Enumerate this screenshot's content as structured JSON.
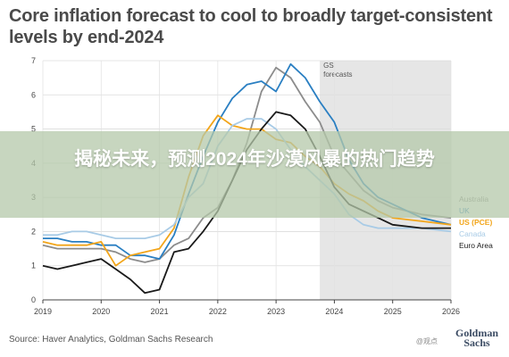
{
  "title": "Core inflation forecast to cool to broadly target-consistent levels by end-2024",
  "source": "Source: Haver Analytics, Goldman Sachs Research",
  "logo_line1": "Goldman",
  "logo_line2": "Sachs",
  "watermark_small": "@观点",
  "banner_text": "揭秘未来，预测2024年沙漠风暴的热门趋势",
  "chart_data": {
    "type": "line",
    "ylim": [
      0,
      7
    ],
    "xlim": [
      2019,
      2026
    ],
    "y_ticks": [
      "0",
      "1",
      "2",
      "3",
      "4",
      "5",
      "6",
      "7"
    ],
    "x_ticks": [
      "2019",
      "2020",
      "2021",
      "2022",
      "2023",
      "2024",
      "2025",
      "2026"
    ],
    "forecast_label": "GS forecasts",
    "forecast_start": 2023.75,
    "grid": true,
    "series": [
      {
        "name": "Australia",
        "color": "#8c8c8c",
        "points": [
          [
            2019,
            1.6
          ],
          [
            2019.25,
            1.5
          ],
          [
            2019.5,
            1.5
          ],
          [
            2019.75,
            1.5
          ],
          [
            2020,
            1.5
          ],
          [
            2020.25,
            1.4
          ],
          [
            2020.5,
            1.2
          ],
          [
            2020.75,
            1.1
          ],
          [
            2021,
            1.2
          ],
          [
            2021.25,
            1.6
          ],
          [
            2021.5,
            1.8
          ],
          [
            2021.75,
            2.4
          ],
          [
            2022,
            2.7
          ],
          [
            2022.25,
            3.5
          ],
          [
            2022.5,
            4.6
          ],
          [
            2022.75,
            6.1
          ],
          [
            2023,
            6.8
          ],
          [
            2023.25,
            6.5
          ],
          [
            2023.5,
            5.8
          ],
          [
            2023.75,
            5.2
          ],
          [
            2024,
            4.2
          ],
          [
            2024.25,
            3.7
          ],
          [
            2024.5,
            3.2
          ],
          [
            2024.75,
            2.9
          ],
          [
            2025,
            2.7
          ],
          [
            2025.5,
            2.5
          ],
          [
            2026,
            2.4
          ]
        ]
      },
      {
        "name": "UK",
        "color": "#2a7fc2",
        "points": [
          [
            2019,
            1.8
          ],
          [
            2019.25,
            1.8
          ],
          [
            2019.5,
            1.7
          ],
          [
            2019.75,
            1.7
          ],
          [
            2020,
            1.6
          ],
          [
            2020.25,
            1.6
          ],
          [
            2020.5,
            1.3
          ],
          [
            2020.75,
            1.3
          ],
          [
            2021,
            1.2
          ],
          [
            2021.25,
            1.9
          ],
          [
            2021.5,
            3.1
          ],
          [
            2021.75,
            4.2
          ],
          [
            2022,
            5.2
          ],
          [
            2022.25,
            5.9
          ],
          [
            2022.5,
            6.3
          ],
          [
            2022.75,
            6.4
          ],
          [
            2023,
            6.1
          ],
          [
            2023.25,
            6.9
          ],
          [
            2023.5,
            6.5
          ],
          [
            2023.75,
            5.8
          ],
          [
            2024,
            5.2
          ],
          [
            2024.25,
            4.1
          ],
          [
            2024.5,
            3.4
          ],
          [
            2024.75,
            3.0
          ],
          [
            2025,
            2.8
          ],
          [
            2025.5,
            2.4
          ],
          [
            2026,
            2.2
          ]
        ]
      },
      {
        "name": "US (PCE)",
        "color": "#f2a51a",
        "points": [
          [
            2019,
            1.7
          ],
          [
            2019.25,
            1.6
          ],
          [
            2019.5,
            1.6
          ],
          [
            2019.75,
            1.6
          ],
          [
            2020,
            1.7
          ],
          [
            2020.25,
            1.0
          ],
          [
            2020.5,
            1.3
          ],
          [
            2020.75,
            1.4
          ],
          [
            2021,
            1.5
          ],
          [
            2021.25,
            2.1
          ],
          [
            2021.5,
            3.6
          ],
          [
            2021.75,
            4.8
          ],
          [
            2022,
            5.4
          ],
          [
            2022.25,
            5.1
          ],
          [
            2022.5,
            5.0
          ],
          [
            2022.75,
            5.0
          ],
          [
            2023,
            4.7
          ],
          [
            2023.25,
            4.6
          ],
          [
            2023.5,
            4.2
          ],
          [
            2023.75,
            3.9
          ],
          [
            2024,
            3.4
          ],
          [
            2024.25,
            3.1
          ],
          [
            2024.5,
            2.9
          ],
          [
            2024.75,
            2.6
          ],
          [
            2025,
            2.4
          ],
          [
            2025.5,
            2.3
          ],
          [
            2026,
            2.2
          ]
        ]
      },
      {
        "name": "Canada",
        "color": "#a8cbe6",
        "points": [
          [
            2019,
            1.9
          ],
          [
            2019.25,
            1.9
          ],
          [
            2019.5,
            2.0
          ],
          [
            2019.75,
            2.0
          ],
          [
            2020,
            1.9
          ],
          [
            2020.25,
            1.8
          ],
          [
            2020.5,
            1.8
          ],
          [
            2020.75,
            1.8
          ],
          [
            2021,
            1.9
          ],
          [
            2021.25,
            2.2
          ],
          [
            2021.5,
            3.0
          ],
          [
            2021.75,
            3.4
          ],
          [
            2022,
            4.5
          ],
          [
            2022.25,
            5.1
          ],
          [
            2022.5,
            5.3
          ],
          [
            2022.75,
            5.3
          ],
          [
            2023,
            5.0
          ],
          [
            2023.25,
            4.4
          ],
          [
            2023.5,
            3.9
          ],
          [
            2023.75,
            3.5
          ],
          [
            2024,
            3.1
          ],
          [
            2024.25,
            2.5
          ],
          [
            2024.5,
            2.2
          ],
          [
            2024.75,
            2.1
          ],
          [
            2025,
            2.1
          ],
          [
            2025.5,
            2.1
          ],
          [
            2026,
            2.0
          ]
        ]
      },
      {
        "name": "Euro Area",
        "color": "#1a1a1a",
        "points": [
          [
            2019,
            1.0
          ],
          [
            2019.25,
            0.9
          ],
          [
            2019.5,
            1.0
          ],
          [
            2019.75,
            1.1
          ],
          [
            2020,
            1.2
          ],
          [
            2020.25,
            0.9
          ],
          [
            2020.5,
            0.6
          ],
          [
            2020.75,
            0.2
          ],
          [
            2021,
            0.3
          ],
          [
            2021.25,
            1.4
          ],
          [
            2021.5,
            1.5
          ],
          [
            2021.75,
            2.0
          ],
          [
            2022,
            2.6
          ],
          [
            2022.25,
            3.5
          ],
          [
            2022.5,
            4.4
          ],
          [
            2022.75,
            5.0
          ],
          [
            2023,
            5.5
          ],
          [
            2023.25,
            5.4
          ],
          [
            2023.5,
            5.0
          ],
          [
            2023.75,
            4.2
          ],
          [
            2024,
            3.3
          ],
          [
            2024.25,
            2.8
          ],
          [
            2024.5,
            2.6
          ],
          [
            2024.75,
            2.4
          ],
          [
            2025,
            2.2
          ],
          [
            2025.5,
            2.1
          ],
          [
            2026,
            2.1
          ]
        ]
      }
    ]
  }
}
